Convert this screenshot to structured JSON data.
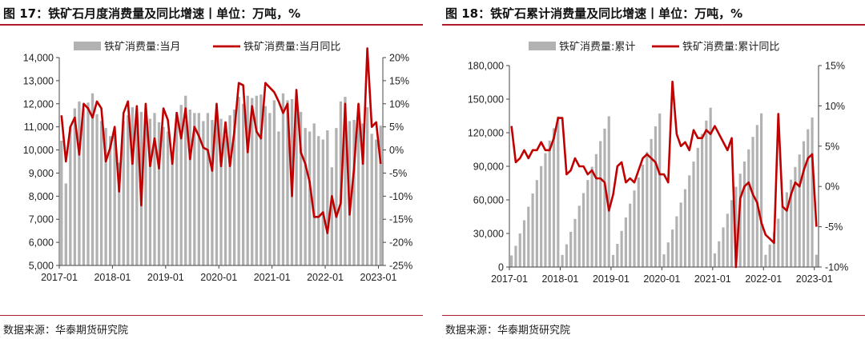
{
  "colors": {
    "bars": "#b2b2b2",
    "line": "#c00000",
    "accent": "#b01c2e"
  },
  "chart_data": [
    {
      "type": "bar",
      "title": "图 17：铁矿石月度消费量及同比增速丨单位：万吨，%",
      "source": "数据来源：华泰期货研究院",
      "x": [
        "2017-01",
        "2017-02",
        "2017-03",
        "2017-04",
        "2017-05",
        "2017-06",
        "2017-07",
        "2017-08",
        "2017-09",
        "2017-10",
        "2017-11",
        "2017-12",
        "2018-01",
        "2018-02",
        "2018-03",
        "2018-04",
        "2018-05",
        "2018-06",
        "2018-07",
        "2018-08",
        "2018-09",
        "2018-10",
        "2018-11",
        "2018-12",
        "2019-01",
        "2019-02",
        "2019-03",
        "2019-04",
        "2019-05",
        "2019-06",
        "2019-07",
        "2019-08",
        "2019-09",
        "2019-10",
        "2019-11",
        "2019-12",
        "2020-01",
        "2020-02",
        "2020-03",
        "2020-04",
        "2020-05",
        "2020-06",
        "2020-07",
        "2020-08",
        "2020-09",
        "2020-10",
        "2020-11",
        "2020-12",
        "2021-01",
        "2021-02",
        "2021-03",
        "2021-04",
        "2021-05",
        "2021-06",
        "2021-07",
        "2021-08",
        "2021-09",
        "2021-10",
        "2021-11",
        "2021-12",
        "2022-01",
        "2022-02",
        "2022-03",
        "2022-04",
        "2022-05",
        "2022-06",
        "2022-07",
        "2022-08",
        "2022-09",
        "2022-10",
        "2022-11",
        "2022-12",
        "2023-01"
      ],
      "x_ticks": [
        "2017-01",
        "2018-01",
        "2019-01",
        "2020-01",
        "2021-01",
        "2022-01",
        "2023-01"
      ],
      "series": [
        {
          "name": "铁矿消费量:当月",
          "type": "bar",
          "axis": "left",
          "values": [
            10400,
            8550,
            11000,
            11800,
            12100,
            11800,
            12050,
            12450,
            11550,
            11250,
            10950,
            10600,
            10800,
            9450,
            11250,
            11500,
            11850,
            11250,
            11650,
            11800,
            11350,
            11600,
            11200,
            11000,
            10800,
            9900,
            11650,
            11950,
            12350,
            11750,
            11600,
            11600,
            11250,
            11600,
            11300,
            11500,
            11350,
            10650,
            11500,
            11750,
            12300,
            12000,
            12350,
            12250,
            12350,
            12400,
            11900,
            11600,
            12150,
            10800,
            12450,
            12150,
            12200,
            11950,
            11650,
            10950,
            10800,
            11150,
            10600,
            10450,
            10850,
            9250,
            10950,
            12100,
            12300,
            11250,
            11300,
            11350,
            11150,
            11850,
            10700,
            10450,
            11050
          ]
        },
        {
          "name": "铁矿消费量:当月同比",
          "type": "line",
          "axis": "right",
          "values": [
            7.5,
            -2.5,
            5.0,
            7.0,
            -1.0,
            10.0,
            9.0,
            7.0,
            10.5,
            9.0,
            -2.5,
            0.5,
            5.0,
            -9.0,
            8.0,
            10.5,
            -3.0,
            9.5,
            -12.0,
            10.0,
            -3.5,
            2.5,
            -4.0,
            9.0,
            6.5,
            -3.0,
            8.0,
            2.5,
            9.0,
            -2.0,
            5.0,
            3.0,
            0.5,
            0.0,
            -4.5,
            10.0,
            -3.5,
            6.0,
            -3.5,
            4.0,
            14.5,
            14.0,
            -0.5,
            9.5,
            4.0,
            2.5,
            14.5,
            13.5,
            12.5,
            10.5,
            8.0,
            10.0,
            -10.0,
            13.0,
            -0.5,
            -3.0,
            -7.0,
            -14.5,
            -14.5,
            -13.5,
            -18.0,
            -10.0,
            -14.5,
            -11.5,
            10.0,
            -14.0,
            -4.0,
            10.0,
            -3.0,
            22.0,
            5.0,
            6.0,
            -3.0
          ]
        }
      ],
      "y_left": {
        "min": 5000,
        "max": 14000,
        "ticks": [
          "5,000",
          "6,000",
          "7,000",
          "8,000",
          "9,000",
          "10,000",
          "11,000",
          "12,000",
          "13,000",
          "14,000"
        ]
      },
      "y_right": {
        "min": -25,
        "max": 20,
        "ticks": [
          "-25%",
          "-20%",
          "-15%",
          "-10%",
          "-5%",
          "0%",
          "5%",
          "10%",
          "15%",
          "20%"
        ]
      },
      "legend": "top"
    },
    {
      "type": "bar",
      "title": "图 18：铁矿石累计消费量及同比增速丨单位：万吨，%",
      "source": "数据来源：华泰期货研究院",
      "x": [
        "2017-01",
        "2017-02",
        "2017-03",
        "2017-04",
        "2017-05",
        "2017-06",
        "2017-07",
        "2017-08",
        "2017-09",
        "2017-10",
        "2017-11",
        "2017-12",
        "2018-01",
        "2018-02",
        "2018-03",
        "2018-04",
        "2018-05",
        "2018-06",
        "2018-07",
        "2018-08",
        "2018-09",
        "2018-10",
        "2018-11",
        "2018-12",
        "2019-01",
        "2019-02",
        "2019-03",
        "2019-04",
        "2019-05",
        "2019-06",
        "2019-07",
        "2019-08",
        "2019-09",
        "2019-10",
        "2019-11",
        "2019-12",
        "2020-01",
        "2020-02",
        "2020-03",
        "2020-04",
        "2020-05",
        "2020-06",
        "2020-07",
        "2020-08",
        "2020-09",
        "2020-10",
        "2020-11",
        "2020-12",
        "2021-01",
        "2021-02",
        "2021-03",
        "2021-04",
        "2021-05",
        "2021-06",
        "2021-07",
        "2021-08",
        "2021-09",
        "2021-10",
        "2021-11",
        "2021-12",
        "2022-01",
        "2022-02",
        "2022-03",
        "2022-04",
        "2022-05",
        "2022-06",
        "2022-07",
        "2022-08",
        "2022-09",
        "2022-10",
        "2022-11",
        "2022-12",
        "2023-01"
      ],
      "x_ticks": [
        "2017-01",
        "2018-01",
        "2019-01",
        "2020-01",
        "2021-01",
        "2022-01",
        "2023-01"
      ],
      "series": [
        {
          "name": "铁矿消费量:累计",
          "type": "bar",
          "axis": "left",
          "values": [
            10400,
            19000,
            30000,
            41800,
            53900,
            65700,
            77700,
            90200,
            101700,
            113000,
            124000,
            134600,
            10800,
            20300,
            31500,
            43000,
            54800,
            66100,
            77800,
            89600,
            100900,
            112500,
            123700,
            134700,
            10800,
            20700,
            32300,
            44300,
            56600,
            68400,
            80000,
            91600,
            102800,
            114400,
            125700,
            137200,
            11350,
            22000,
            33500,
            45300,
            57600,
            69600,
            81900,
            94200,
            106500,
            118900,
            130800,
            142400,
            12200,
            23000,
            35400,
            47600,
            59800,
            71700,
            83400,
            94300,
            105100,
            116300,
            126900,
            137300,
            10900,
            20100,
            31100,
            43200,
            55500,
            66800,
            78100,
            89400,
            100600,
            112400,
            123100,
            133600,
            11000
          ]
        },
        {
          "name": "铁矿消费量:累计同比",
          "type": "line",
          "axis": "right",
          "values": [
            7.5,
            3.0,
            3.5,
            4.5,
            3.5,
            4.5,
            4.5,
            5.5,
            4.5,
            4.5,
            6.0,
            8.5,
            8.5,
            1.5,
            2.0,
            3.5,
            2.5,
            2.5,
            1.5,
            2.0,
            1.0,
            1.0,
            0.5,
            -3.0,
            -1.0,
            2.5,
            3.0,
            0.5,
            1.0,
            0.5,
            2.0,
            3.5,
            4.0,
            3.5,
            3.0,
            1.5,
            1.5,
            0.5,
            13.0,
            6.5,
            5.0,
            5.5,
            4.5,
            7.0,
            6.0,
            6.0,
            7.0,
            6.5,
            7.5,
            6.5,
            5.5,
            4.5,
            6.0,
            -10.0,
            -1.5,
            0.0,
            0.5,
            -1.0,
            -2.0,
            -4.5,
            -6.0,
            -6.5,
            -7.0,
            9.0,
            -2.5,
            -3.0,
            -1.0,
            0.5,
            0.0,
            2.0,
            3.5,
            4.0,
            -5.0
          ]
        }
      ],
      "y_left": {
        "min": 0,
        "max": 180000,
        "ticks": [
          "0",
          "30,000",
          "60,000",
          "90,000",
          "120,000",
          "150,000",
          "180,000"
        ]
      },
      "y_right": {
        "min": -10,
        "max": 15,
        "ticks": [
          "-10%",
          "-5%",
          "0%",
          "5%",
          "10%",
          "15%"
        ]
      },
      "legend": "top"
    }
  ]
}
